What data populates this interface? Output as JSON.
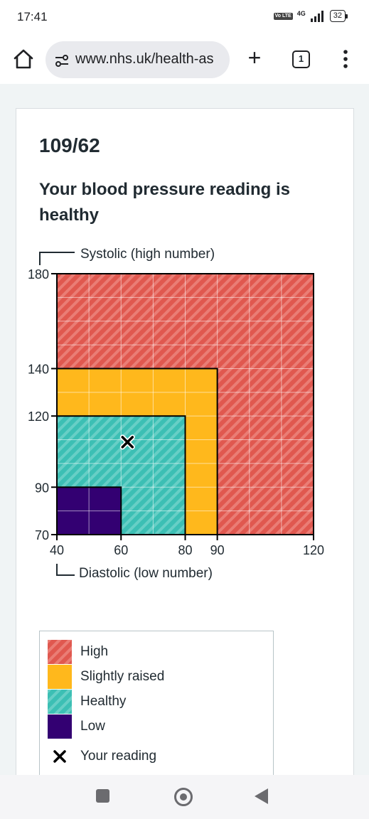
{
  "status": {
    "time": "17:41",
    "volte_label": "Vo LTE",
    "network": "4G",
    "battery": "32"
  },
  "browser": {
    "url": "www.nhs.uk/health-as",
    "tab_count": "1"
  },
  "result": {
    "reading": "109/62",
    "headline": "Your blood pressure reading is healthy"
  },
  "colors": {
    "high": "#e0584f",
    "slightly_raised": "#ffb81c",
    "healthy": "#3cbfb4",
    "low": "#330072",
    "gridline": "#ffffff"
  },
  "chart_data": {
    "type": "area",
    "ylabel": "Systolic (high number)",
    "xlabel": "Diastolic (low number)",
    "xlim": [
      40,
      120
    ],
    "ylim": [
      70,
      180
    ],
    "x_ticks": [
      40,
      60,
      80,
      90,
      120
    ],
    "y_ticks": [
      70,
      90,
      120,
      140,
      180
    ],
    "grid": true,
    "zones": [
      {
        "name": "High",
        "x_max": 120,
        "y_max": 180,
        "color": "#e0584f"
      },
      {
        "name": "Slightly raised",
        "x_max": 90,
        "y_max": 140,
        "color": "#ffb81c"
      },
      {
        "name": "Healthy",
        "x_max": 80,
        "y_max": 120,
        "color": "#3cbfb4"
      },
      {
        "name": "Low",
        "x_max": 60,
        "y_max": 90,
        "color": "#330072"
      }
    ],
    "reading_point": {
      "x": 62,
      "y": 109
    }
  },
  "legend": {
    "items": [
      {
        "label": "High",
        "key": "high"
      },
      {
        "label": "Slightly raised",
        "key": "slightly_raised"
      },
      {
        "label": "Healthy",
        "key": "healthy"
      },
      {
        "label": "Low",
        "key": "low"
      },
      {
        "label": "Your reading",
        "key": "reading"
      }
    ]
  }
}
